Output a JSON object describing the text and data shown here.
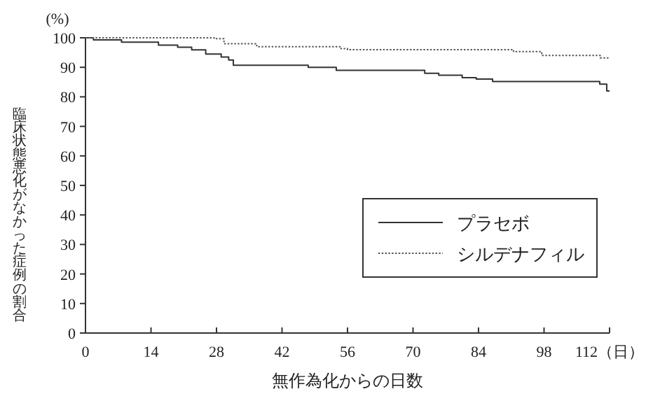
{
  "chart_data": {
    "type": "step",
    "ylabel": "臨床状態悪化がなかった症例の割合",
    "xlabel": "無作為化からの日数",
    "annotations": [
      "(%)"
    ],
    "xlim": [
      0,
      112
    ],
    "ylim": [
      0,
      100
    ],
    "xticks": [
      0,
      14,
      28,
      42,
      56,
      70,
      84,
      98,
      {
        "value": 112,
        "label": "112（日）"
      }
    ],
    "yticks": [
      0,
      10,
      20,
      30,
      40,
      50,
      60,
      70,
      80,
      90,
      100
    ],
    "grid": false,
    "legend": "right",
    "series": [
      {
        "name": "プラセボ",
        "color": "#333333",
        "line_style": "solid",
        "x": [
          0,
          1.7,
          7.7,
          15.6,
          19.7,
          22.7,
          25.7,
          29,
          30.6,
          31.6,
          47.6,
          53.6,
          72.5,
          75.5,
          80.5,
          83.5,
          87,
          109.9,
          111.4,
          112
        ],
        "values": [
          100,
          99.3,
          98.5,
          97.5,
          96.8,
          95.9,
          94.5,
          93.5,
          92.5,
          90.7,
          90,
          89,
          88,
          87.3,
          86.5,
          86,
          85.2,
          84.3,
          82,
          82
        ]
      },
      {
        "name": "シルデナフィル",
        "color": "#555555",
        "line_style": "dotted",
        "x": [
          0,
          27.5,
          29.6,
          36.6,
          54.6,
          56,
          91.5,
          97.5,
          110,
          112
        ],
        "values": [
          100,
          99.7,
          98,
          97,
          96.3,
          96,
          95.3,
          94,
          93.2,
          93.2
        ]
      }
    ]
  }
}
